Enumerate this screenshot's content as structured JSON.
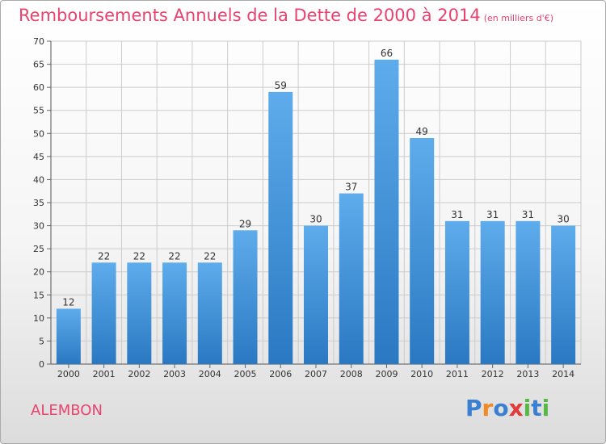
{
  "title": "Remboursements Annuels de la Dette de 2000 à 2014",
  "subtitle": "(en milliers d'€)",
  "place": "ALEMBON",
  "logo": {
    "letters": [
      "P",
      "r",
      "o",
      "x",
      "i",
      "t",
      "i"
    ],
    "colors": [
      "#3a7fd1",
      "#f08a24",
      "#3a7fd1",
      "#e23a3a",
      "#58b846",
      "#3a7fd1",
      "#58b846"
    ]
  },
  "colors": {
    "bar": "#4d9ee0",
    "bar_dark": "#2a78c2",
    "title": "#e8436f",
    "grid": "#cccccc"
  },
  "chart_data": {
    "type": "bar",
    "title": "Remboursements Annuels de la Dette de 2000 à 2014",
    "subtitle": "(en milliers d'€)",
    "categories": [
      "2000",
      "2001",
      "2002",
      "2003",
      "2004",
      "2005",
      "2006",
      "2007",
      "2008",
      "2009",
      "2010",
      "2011",
      "2012",
      "2013",
      "2014"
    ],
    "values": [
      12,
      22,
      22,
      22,
      22,
      29,
      59,
      30,
      37,
      66,
      49,
      31,
      31,
      31,
      30
    ],
    "ylim": [
      0,
      70
    ],
    "yticks": [
      0,
      5,
      10,
      15,
      20,
      25,
      30,
      35,
      40,
      45,
      50,
      55,
      60,
      65,
      70
    ],
    "grid": true,
    "data_labels": true
  }
}
